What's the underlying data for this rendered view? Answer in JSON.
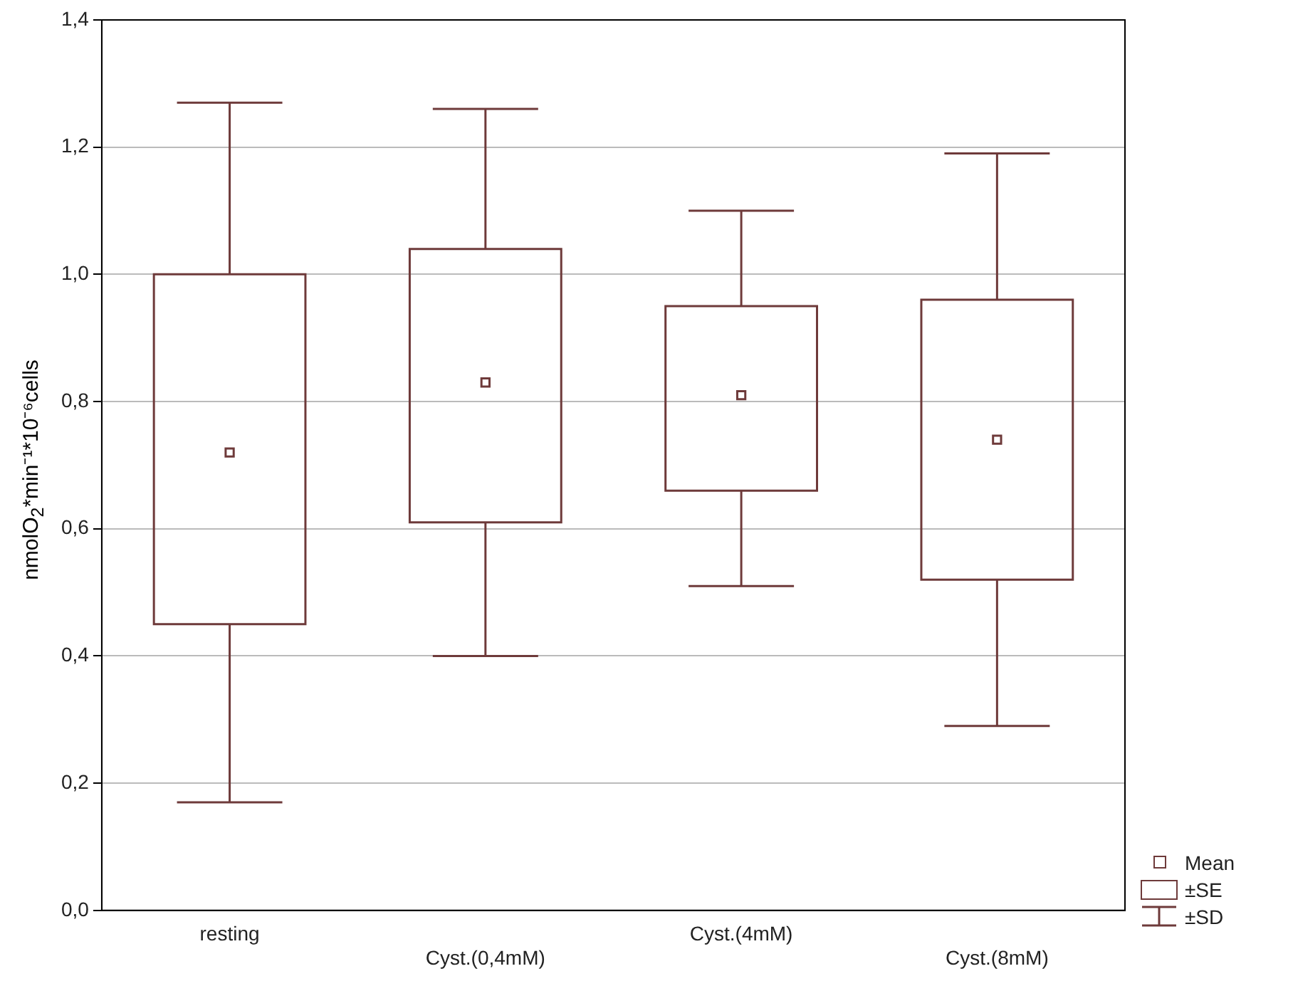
{
  "chart_data": {
    "type": "box",
    "ylabel": "nmolO$_{2}$*min⁻¹*10⁻⁶cells",
    "categories": [
      "resting",
      "Cyst.(0,4mM)",
      "Cyst.(4mM)",
      "Cyst.(8mM)"
    ],
    "boxes": [
      {
        "low": 0.17,
        "q1": 0.45,
        "q3": 1.0,
        "high": 1.27,
        "mean": 0.72
      },
      {
        "low": 0.4,
        "q1": 0.61,
        "q3": 1.04,
        "high": 1.26,
        "mean": 0.83
      },
      {
        "low": 0.51,
        "q1": 0.66,
        "q3": 0.95,
        "high": 1.1,
        "mean": 0.81
      },
      {
        "low": 0.29,
        "q1": 0.52,
        "q3": 0.96,
        "high": 1.19,
        "mean": 0.74
      }
    ],
    "color": "#6e3a3a",
    "marker": "square",
    "ylim": [
      0,
      1.4
    ],
    "yticks": [
      {
        "value": 0,
        "label": "0,0"
      },
      {
        "value": 0.2,
        "label": "0,2"
      },
      {
        "value": 0.4,
        "label": "0,4"
      },
      {
        "value": 0.6,
        "label": "0,6"
      },
      {
        "value": 0.8,
        "label": "0,8"
      },
      {
        "value": 1.0,
        "label": "1,0"
      },
      {
        "value": 1.2,
        "label": "1,2"
      },
      {
        "value": 1.4,
        "label": "1,4"
      }
    ],
    "grid": "y",
    "annotations": [
      "Mean",
      "±SE",
      "±SD"
    ]
  }
}
